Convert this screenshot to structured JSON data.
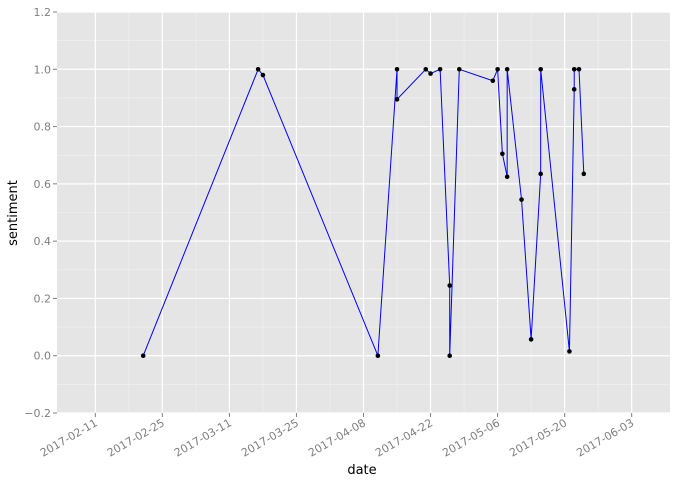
{
  "chart_data": {
    "type": "line",
    "x_label": "date",
    "y_label": "sentiment",
    "x": [
      "2017-02-21",
      "2017-03-17",
      "2017-03-18",
      "2017-04-11",
      "2017-04-15",
      "2017-04-15",
      "2017-04-21",
      "2017-04-22",
      "2017-04-24",
      "2017-04-26",
      "2017-04-26",
      "2017-04-28",
      "2017-05-05",
      "2017-05-06",
      "2017-05-07",
      "2017-05-08",
      "2017-05-08",
      "2017-05-11",
      "2017-05-13",
      "2017-05-15",
      "2017-05-15",
      "2017-05-21",
      "2017-05-22",
      "2017-05-22",
      "2017-05-23",
      "2017-05-24"
    ],
    "series": [
      {
        "color": "#0000ff",
        "point_color": "#000000",
        "values": [
          0.0,
          1.0,
          0.98,
          0.0,
          1.0,
          0.895,
          1.0,
          0.985,
          1.0,
          0.245,
          0.0,
          1.0,
          0.96,
          1.0,
          0.705,
          0.625,
          1.0,
          0.545,
          0.057,
          0.635,
          1.0,
          0.015,
          0.93,
          1.0,
          1.0,
          0.635
        ]
      }
    ],
    "xlim": [
      "2017-02-03",
      "2017-06-11"
    ],
    "xticks": [
      "2017-02-11",
      "2017-02-25",
      "2017-03-11",
      "2017-03-25",
      "2017-04-08",
      "2017-04-22",
      "2017-05-06",
      "2017-05-20",
      "2017-06-03"
    ],
    "ylim": [
      -0.2,
      1.2
    ],
    "yticks": [
      {
        "value": -0.2,
        "label": "−0.2"
      },
      {
        "value": 0,
        "label": "0.0"
      },
      0.2,
      0.4,
      0.6,
      0.8,
      {
        "value": 1,
        "label": "1.0"
      },
      1.2
    ],
    "grid": true,
    "background": "#e5e5e5"
  }
}
